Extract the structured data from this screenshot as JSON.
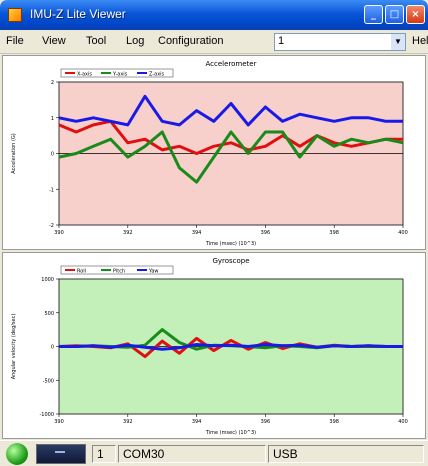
{
  "window": {
    "title": "IMU-Z Lite Viewer"
  },
  "menu": {
    "file": "File",
    "view": "View",
    "tool": "Tool",
    "log": "Log",
    "configuration": "Configuration",
    "channel_value": "1",
    "help": "Hel"
  },
  "charts": {
    "accel": {
      "title": "Accelerometer",
      "xlabel": "Time (msec) (10^3)",
      "ylabel": "Acceleration (G)",
      "legend": [
        "X-axis",
        "Y-axis",
        "Z-axis"
      ],
      "background": "#f7d0cc",
      "ylim": [
        -2,
        2
      ],
      "xlim": [
        390,
        400
      ],
      "yticks": [
        "2",
        "1",
        "0",
        "-1",
        "-2"
      ],
      "xticks": [
        "390",
        "392",
        "394",
        "396",
        "398",
        "400"
      ],
      "colors": {
        "X": "#e01010",
        "Y": "#1a8a1a",
        "Z": "#1a1ae8"
      }
    },
    "gyro": {
      "title": "Gyroscope",
      "xlabel": "Time (msec) (10^3)",
      "ylabel": "Angular velocity (deg/sec)",
      "legend": [
        "Roll",
        "Pitch",
        "Yaw"
      ],
      "background": "#c2f0b8",
      "ylim": [
        -1000,
        1000
      ],
      "xlim": [
        390,
        400
      ],
      "yticks": [
        "1000",
        "500",
        "0",
        "-500",
        "-1000"
      ],
      "xticks": [
        "390",
        "392",
        "394",
        "396",
        "398",
        "400"
      ],
      "colors": {
        "X": "#e01010",
        "Y": "#1a8a1a",
        "Z": "#1a1ae8"
      }
    }
  },
  "chart_data": [
    {
      "type": "line",
      "title": "Accelerometer",
      "xlabel": "Time (msec) (10^3)",
      "ylabel": "Acceleration (G)",
      "xlim": [
        390,
        400
      ],
      "ylim": [
        -2,
        2
      ],
      "x": [
        390,
        390.5,
        391,
        391.5,
        392,
        392.5,
        393,
        393.5,
        394,
        394.5,
        395,
        395.5,
        396,
        396.5,
        397,
        397.5,
        398,
        398.5,
        399,
        399.5,
        400
      ],
      "series": [
        {
          "name": "X-axis",
          "values": [
            0.8,
            0.6,
            0.8,
            0.9,
            0.3,
            0.4,
            0.1,
            0.2,
            0.0,
            0.2,
            0.3,
            0.1,
            0.2,
            0.5,
            0.2,
            0.5,
            0.3,
            0.2,
            0.3,
            0.4,
            0.4
          ]
        },
        {
          "name": "Y-axis",
          "values": [
            -0.1,
            0.0,
            0.2,
            0.4,
            -0.1,
            0.2,
            0.6,
            -0.4,
            -0.8,
            -0.1,
            0.6,
            0.0,
            0.6,
            0.6,
            -0.1,
            0.5,
            0.2,
            0.4,
            0.3,
            0.4,
            0.3
          ]
        },
        {
          "name": "Z-axis",
          "values": [
            1.0,
            0.9,
            1.0,
            0.9,
            0.8,
            1.6,
            0.9,
            0.8,
            1.2,
            0.9,
            1.4,
            0.8,
            1.3,
            0.9,
            1.1,
            1.0,
            0.9,
            1.0,
            1.0,
            0.9,
            0.9
          ]
        }
      ]
    },
    {
      "type": "line",
      "title": "Gyroscope",
      "xlabel": "Time (msec) (10^3)",
      "ylabel": "Angular velocity (deg/sec)",
      "xlim": [
        390,
        400
      ],
      "ylim": [
        -1000,
        1000
      ],
      "x": [
        390,
        390.5,
        391,
        391.5,
        392,
        392.5,
        393,
        393.5,
        394,
        394.5,
        395,
        395.5,
        396,
        396.5,
        397,
        397.5,
        398,
        398.5,
        399,
        399.5,
        400
      ],
      "series": [
        {
          "name": "Roll",
          "values": [
            0,
            10,
            0,
            -20,
            40,
            -150,
            80,
            -100,
            120,
            -60,
            90,
            -40,
            60,
            -30,
            40,
            -10,
            20,
            0,
            10,
            0,
            0
          ]
        },
        {
          "name": "Pitch",
          "values": [
            0,
            0,
            10,
            0,
            -10,
            20,
            250,
            60,
            -40,
            20,
            10,
            0,
            -20,
            10,
            0,
            -20,
            10,
            0,
            0,
            0,
            0
          ]
        },
        {
          "name": "Yaw",
          "values": [
            0,
            0,
            10,
            -10,
            20,
            -10,
            -40,
            -20,
            30,
            10,
            20,
            0,
            30,
            10,
            20,
            -10,
            10,
            0,
            10,
            0,
            0
          ]
        }
      ]
    }
  ],
  "status": {
    "port_number": "1",
    "port_name": "COM30",
    "interface": "USB"
  }
}
